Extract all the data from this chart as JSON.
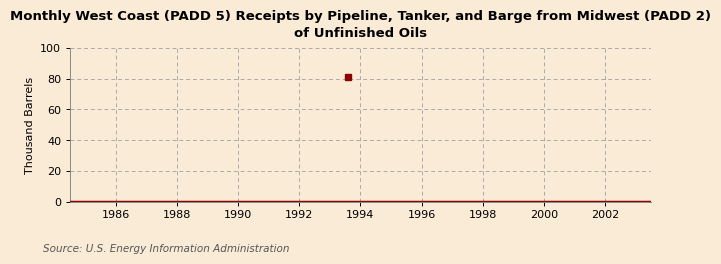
{
  "title": "Monthly West Coast (PADD 5) Receipts by Pipeline, Tanker, and Barge from Midwest (PADD 2)\nof Unfinished Oils",
  "ylabel": "Thousand Barrels",
  "source": "Source: U.S. Energy Information Administration",
  "background_color": "#faebd7",
  "plot_bg_color": "#faebd7",
  "line_color": "#8b0000",
  "xlim": [
    1984.5,
    2003.5
  ],
  "ylim": [
    0,
    100
  ],
  "yticks": [
    0,
    20,
    40,
    60,
    80,
    100
  ],
  "xticks": [
    1986,
    1988,
    1990,
    1992,
    1994,
    1996,
    1998,
    2000,
    2002
  ],
  "point_x": 1993.6,
  "point_y": 81,
  "title_fontsize": 9.5,
  "ylabel_fontsize": 8,
  "tick_fontsize": 8,
  "source_fontsize": 7.5
}
